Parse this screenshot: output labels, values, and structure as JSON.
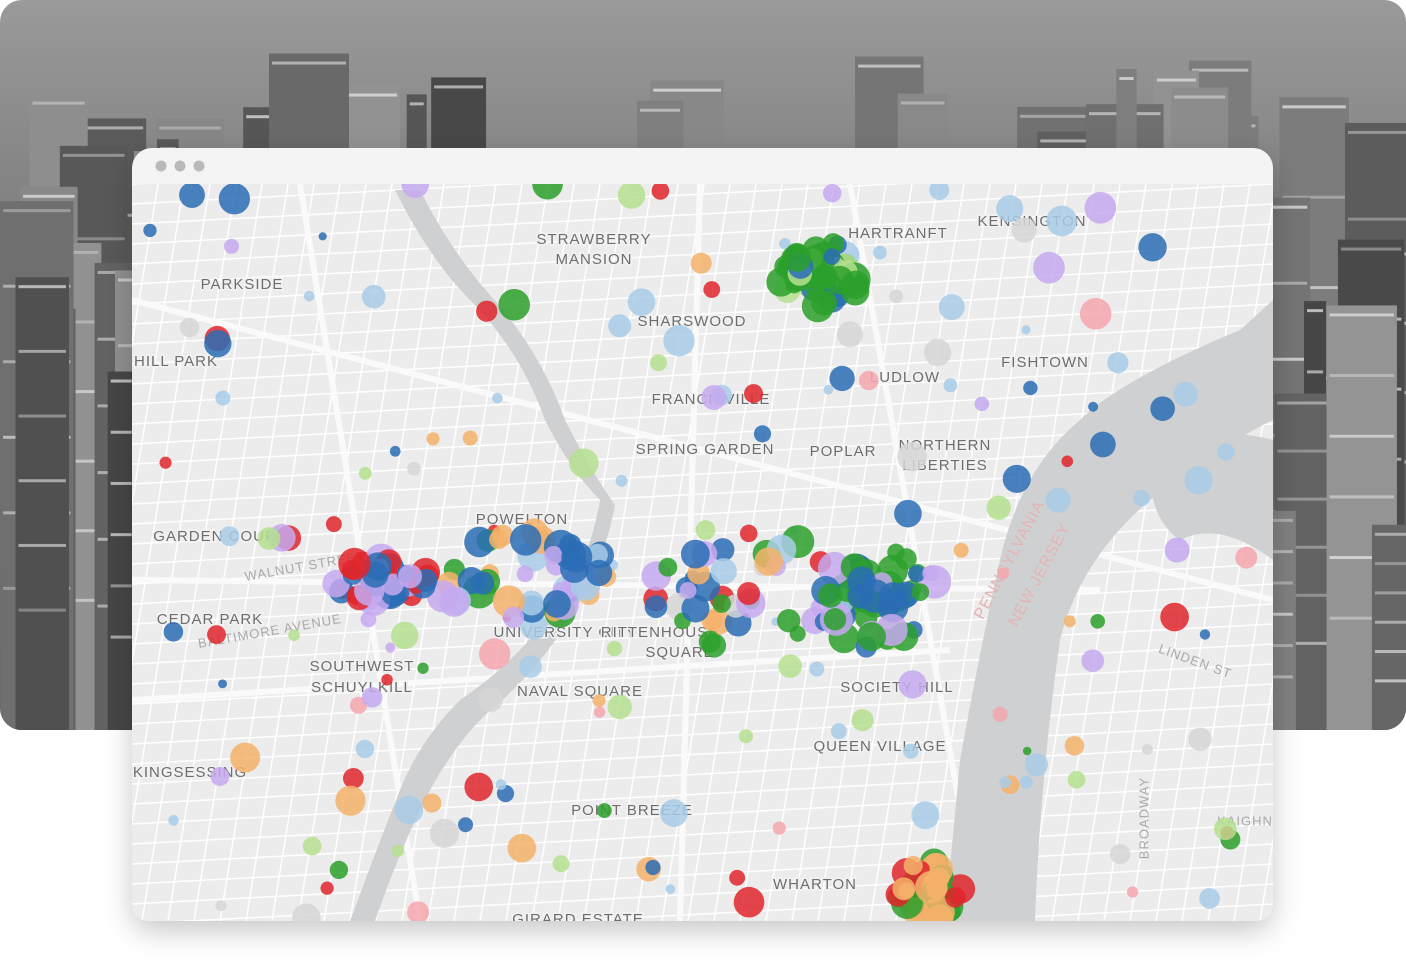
{
  "map": {
    "labels": [
      "STRAWBERRY",
      "MANSION",
      "HARTRANFT",
      "KENSINGTON",
      "PARKSIDE",
      "SHARSWOOD",
      "HILL PARK",
      "FISHTOWN",
      "LUDLOW",
      "FRANCISVILLE",
      "SPRING GARDEN",
      "POPLAR",
      "NORTHERN",
      "LIBERTIES",
      "POWELTON",
      "GARDEN COURT",
      "WALNUT STREET",
      "CEDAR PARK",
      "BALTIMORE AVENUE",
      "SOUTHWEST",
      "SCHUYLKILL",
      "UNIVERSITY CITY",
      "RITTENHOUSE",
      "SQUARE",
      "NAVAL SQUARE",
      "SOCIETY HILL",
      "QUEEN VILLAGE",
      "KINGSESSING",
      "POINT BREEZE",
      "WHARTON",
      "GIRARD ESTATE",
      "PENNSYLVANIA",
      "NEW JERSEY",
      "LINDEN ST",
      "KAIGHN",
      "BROADWAY"
    ]
  }
}
